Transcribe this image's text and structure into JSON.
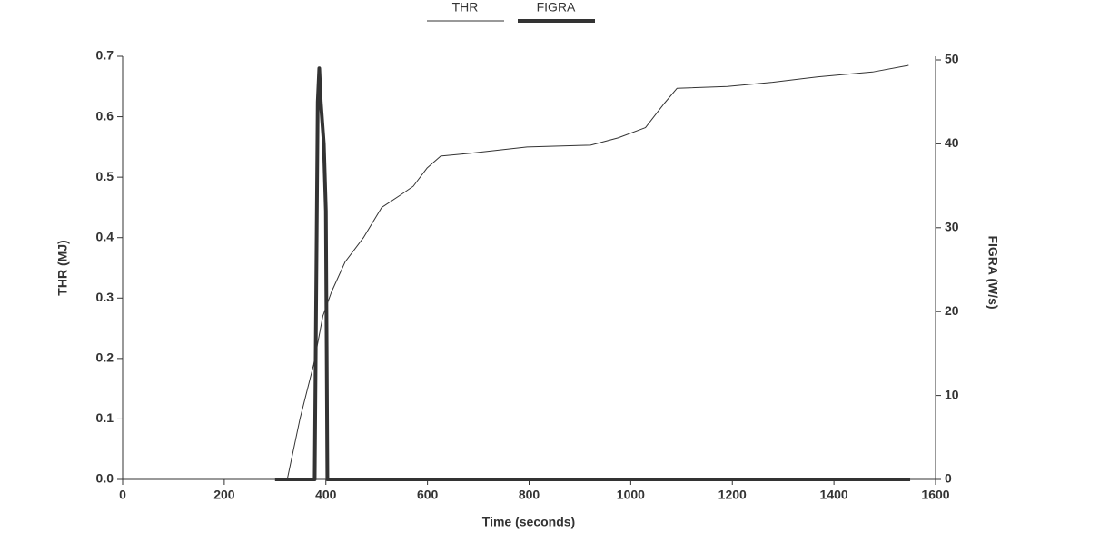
{
  "chart_data": {
    "type": "line",
    "xlabel": "Time (seconds)",
    "ylabel": "THR (MJ)",
    "y2label": "FIGRA (W/s)",
    "xlim": [
      0,
      1600
    ],
    "xticks": [
      0,
      200,
      400,
      600,
      800,
      1000,
      1200,
      1400,
      1600
    ],
    "ylim": [
      0,
      0.7
    ],
    "yticks": [
      {
        "value": 0,
        "label": "0.0"
      },
      0.1,
      0.2,
      0.3,
      0.4,
      0.5,
      0.6,
      0.7
    ],
    "y2lim": [
      0,
      50
    ],
    "y2ticks": [
      0,
      10,
      20,
      30,
      40,
      50
    ],
    "series": [
      {
        "name": "THR",
        "color": "#333333",
        "width": 1,
        "x": [
          300,
          324,
          349,
          376,
          394,
          411,
          438,
          474,
          510,
          546,
          572,
          599,
          626,
          689,
          796,
          921,
          975,
          1029,
          1064,
          1091,
          1190,
          1279,
          1369,
          1476,
          1547
        ],
        "values": [
          0,
          0,
          0.1,
          0.19,
          0.27,
          0.31,
          0.36,
          0.4,
          0.45,
          0.47,
          0.485,
          0.515,
          0.535,
          0.54,
          0.55,
          0.553,
          0.565,
          0.582,
          0.62,
          0.647,
          0.65,
          0.657,
          0.666,
          0.674,
          0.685
        ]
      },
      {
        "name": "FIGRA",
        "color": "#333333",
        "width": 4,
        "axis": "y2",
        "x": [
          300,
          378,
          384,
          387,
          390,
          396,
          400,
          403,
          1550
        ],
        "values": [
          0,
          0,
          45,
          49,
          45,
          40,
          32,
          0,
          0
        ]
      }
    ]
  }
}
